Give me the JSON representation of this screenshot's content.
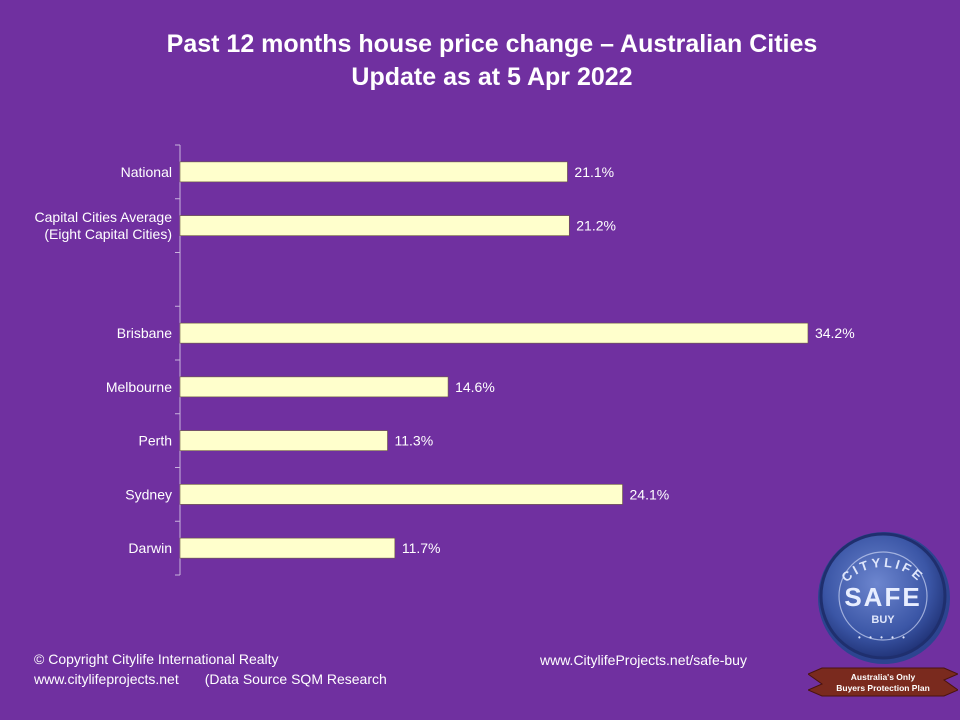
{
  "header": {
    "title_line1": "Past 12 months house price change – Australian Cities",
    "title_line2": "Update as at 5 Apr 2022"
  },
  "chart_data": {
    "type": "bar",
    "orientation": "horizontal",
    "categories": [
      [
        "National"
      ],
      [
        "Capital Cities Average",
        "(Eight Capital Cities)"
      ],
      [
        ""
      ],
      [
        "Brisbane"
      ],
      [
        "Melbourne"
      ],
      [
        "Perth"
      ],
      [
        "Sydney"
      ],
      [
        "Darwin"
      ]
    ],
    "values": [
      21.1,
      21.2,
      null,
      34.2,
      14.6,
      11.3,
      24.1,
      11.7
    ],
    "data_labels": [
      "21.1%",
      "21.2%",
      "",
      "34.2%",
      "14.6%",
      "11.3%",
      "24.1%",
      "11.7%"
    ],
    "xlim": [
      0,
      35.4
    ],
    "bar_color": "#ffffcc",
    "grid": false,
    "legend": "none"
  },
  "footer": {
    "copyright": "© Copyright Citylife International  Realty",
    "website": "www.citylifeprojects.net",
    "source": "(Data Source SQM Research",
    "safe_buy_url": "www.CitylifeProjects.net/safe-buy"
  },
  "seal": {
    "ring_text": "CITYLIFE",
    "main_text": "SAFE",
    "sub_text": "BUY",
    "ribbon_line1": "Australia's Only",
    "ribbon_line2": "Buyers Protection Plan",
    "colors": {
      "seal": "#3b56a6",
      "ribbon": "#7a2a1e"
    }
  }
}
